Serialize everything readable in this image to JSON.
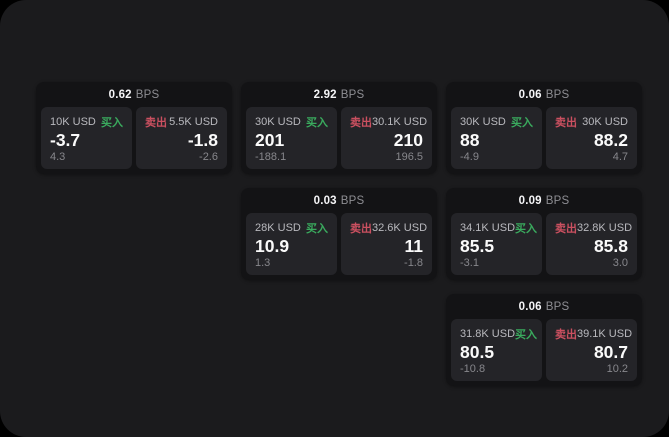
{
  "labels": {
    "bps": "BPS",
    "buy": "买入",
    "sell": "卖出"
  },
  "colors": {
    "buy": "#3aab5e",
    "sell": "#cb5060",
    "panel_bg": "#1b1b1d",
    "card_bg": "#131315",
    "tile_bg": "#242428"
  },
  "cards": [
    {
      "col": 1,
      "row": 1,
      "bps": "0.62",
      "buy": {
        "amount": "10K USD",
        "price": "-3.7",
        "delta": "4.3"
      },
      "sell": {
        "amount": "5.5K USD",
        "price": "-1.8",
        "delta": "-2.6"
      }
    },
    {
      "col": 2,
      "row": 1,
      "bps": "2.92",
      "buy": {
        "amount": "30K USD",
        "price": "201",
        "delta": "-188.1"
      },
      "sell": {
        "amount": "30.1K USD",
        "price": "210",
        "delta": "196.5"
      }
    },
    {
      "col": 3,
      "row": 1,
      "bps": "0.06",
      "buy": {
        "amount": "30K USD",
        "price": "88",
        "delta": "-4.9"
      },
      "sell": {
        "amount": "30K USD",
        "price": "88.2",
        "delta": "4.7"
      }
    },
    {
      "col": 2,
      "row": 2,
      "bps": "0.03",
      "buy": {
        "amount": "28K USD",
        "price": "10.9",
        "delta": "1.3"
      },
      "sell": {
        "amount": "32.6K USD",
        "price": "11",
        "delta": "-1.8"
      }
    },
    {
      "col": 3,
      "row": 2,
      "bps": "0.09",
      "buy": {
        "amount": "34.1K USD",
        "price": "85.5",
        "delta": "-3.1"
      },
      "sell": {
        "amount": "32.8K USD",
        "price": "85.8",
        "delta": "3.0"
      }
    },
    {
      "col": 3,
      "row": 3,
      "bps": "0.06",
      "buy": {
        "amount": "31.8K USD",
        "price": "80.5",
        "delta": "-10.8"
      },
      "sell": {
        "amount": "39.1K USD",
        "price": "80.7",
        "delta": "10.2"
      }
    }
  ]
}
